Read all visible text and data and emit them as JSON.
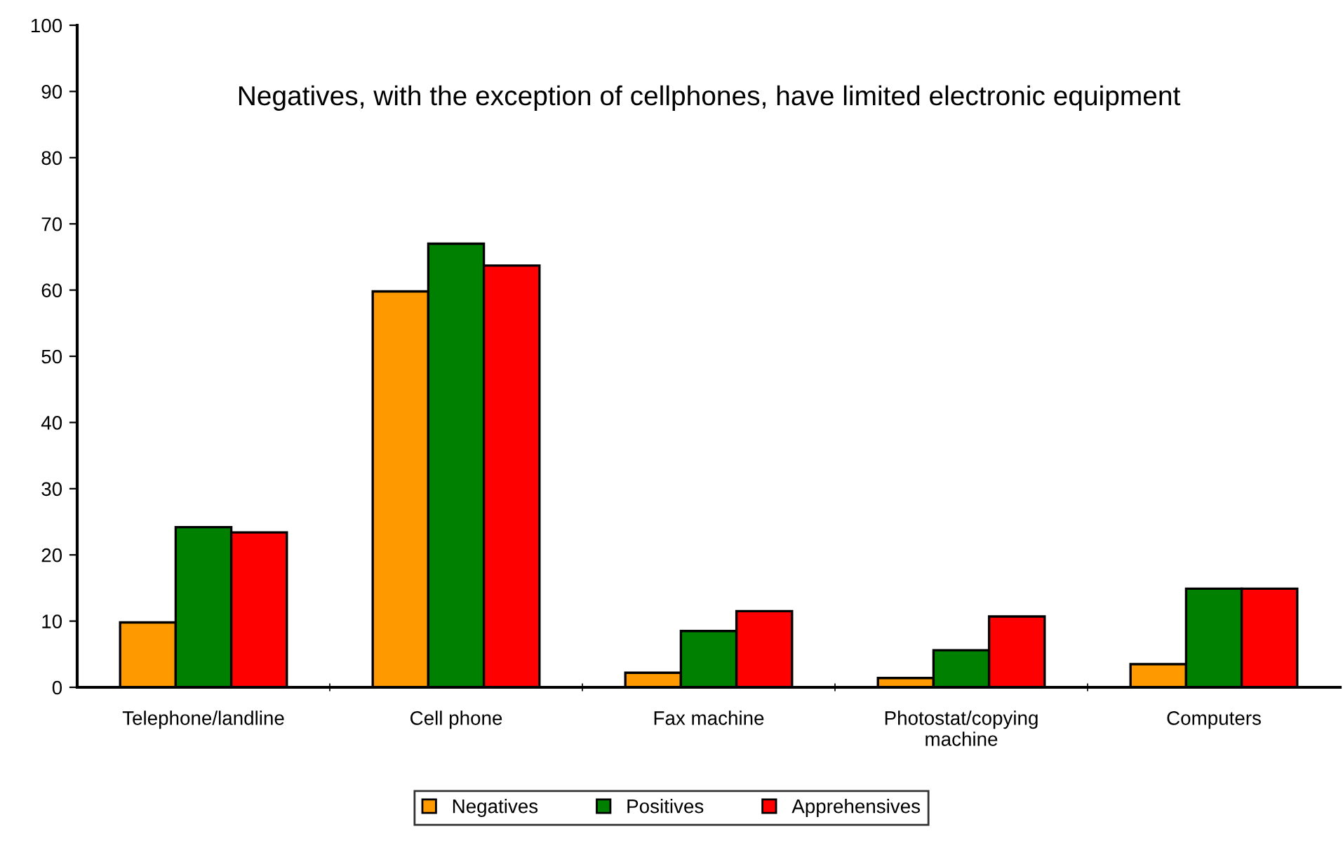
{
  "chart_data": {
    "type": "bar",
    "title": "Negatives, with the exception of cellphones, have limited electronic equipment",
    "categories": [
      "Telephone/landline",
      "Cell phone",
      "Fax machine",
      "Photostat/copying\nmachine",
      "Computers"
    ],
    "series": [
      {
        "name": "Negatives",
        "color": "#ff9900",
        "values": [
          9.8,
          59.8,
          2.2,
          1.4,
          3.5
        ]
      },
      {
        "name": "Positives",
        "color": "#008000",
        "values": [
          24.2,
          67.0,
          8.5,
          5.6,
          14.9
        ]
      },
      {
        "name": "Apprehensives",
        "color": "#ff0000",
        "values": [
          23.4,
          63.7,
          11.5,
          10.7,
          14.9
        ]
      }
    ],
    "ylim": [
      0,
      100
    ],
    "yticks": [
      0,
      10,
      20,
      30,
      40,
      50,
      60,
      70,
      80,
      90,
      100
    ],
    "grid": false,
    "legend": "bottom"
  }
}
